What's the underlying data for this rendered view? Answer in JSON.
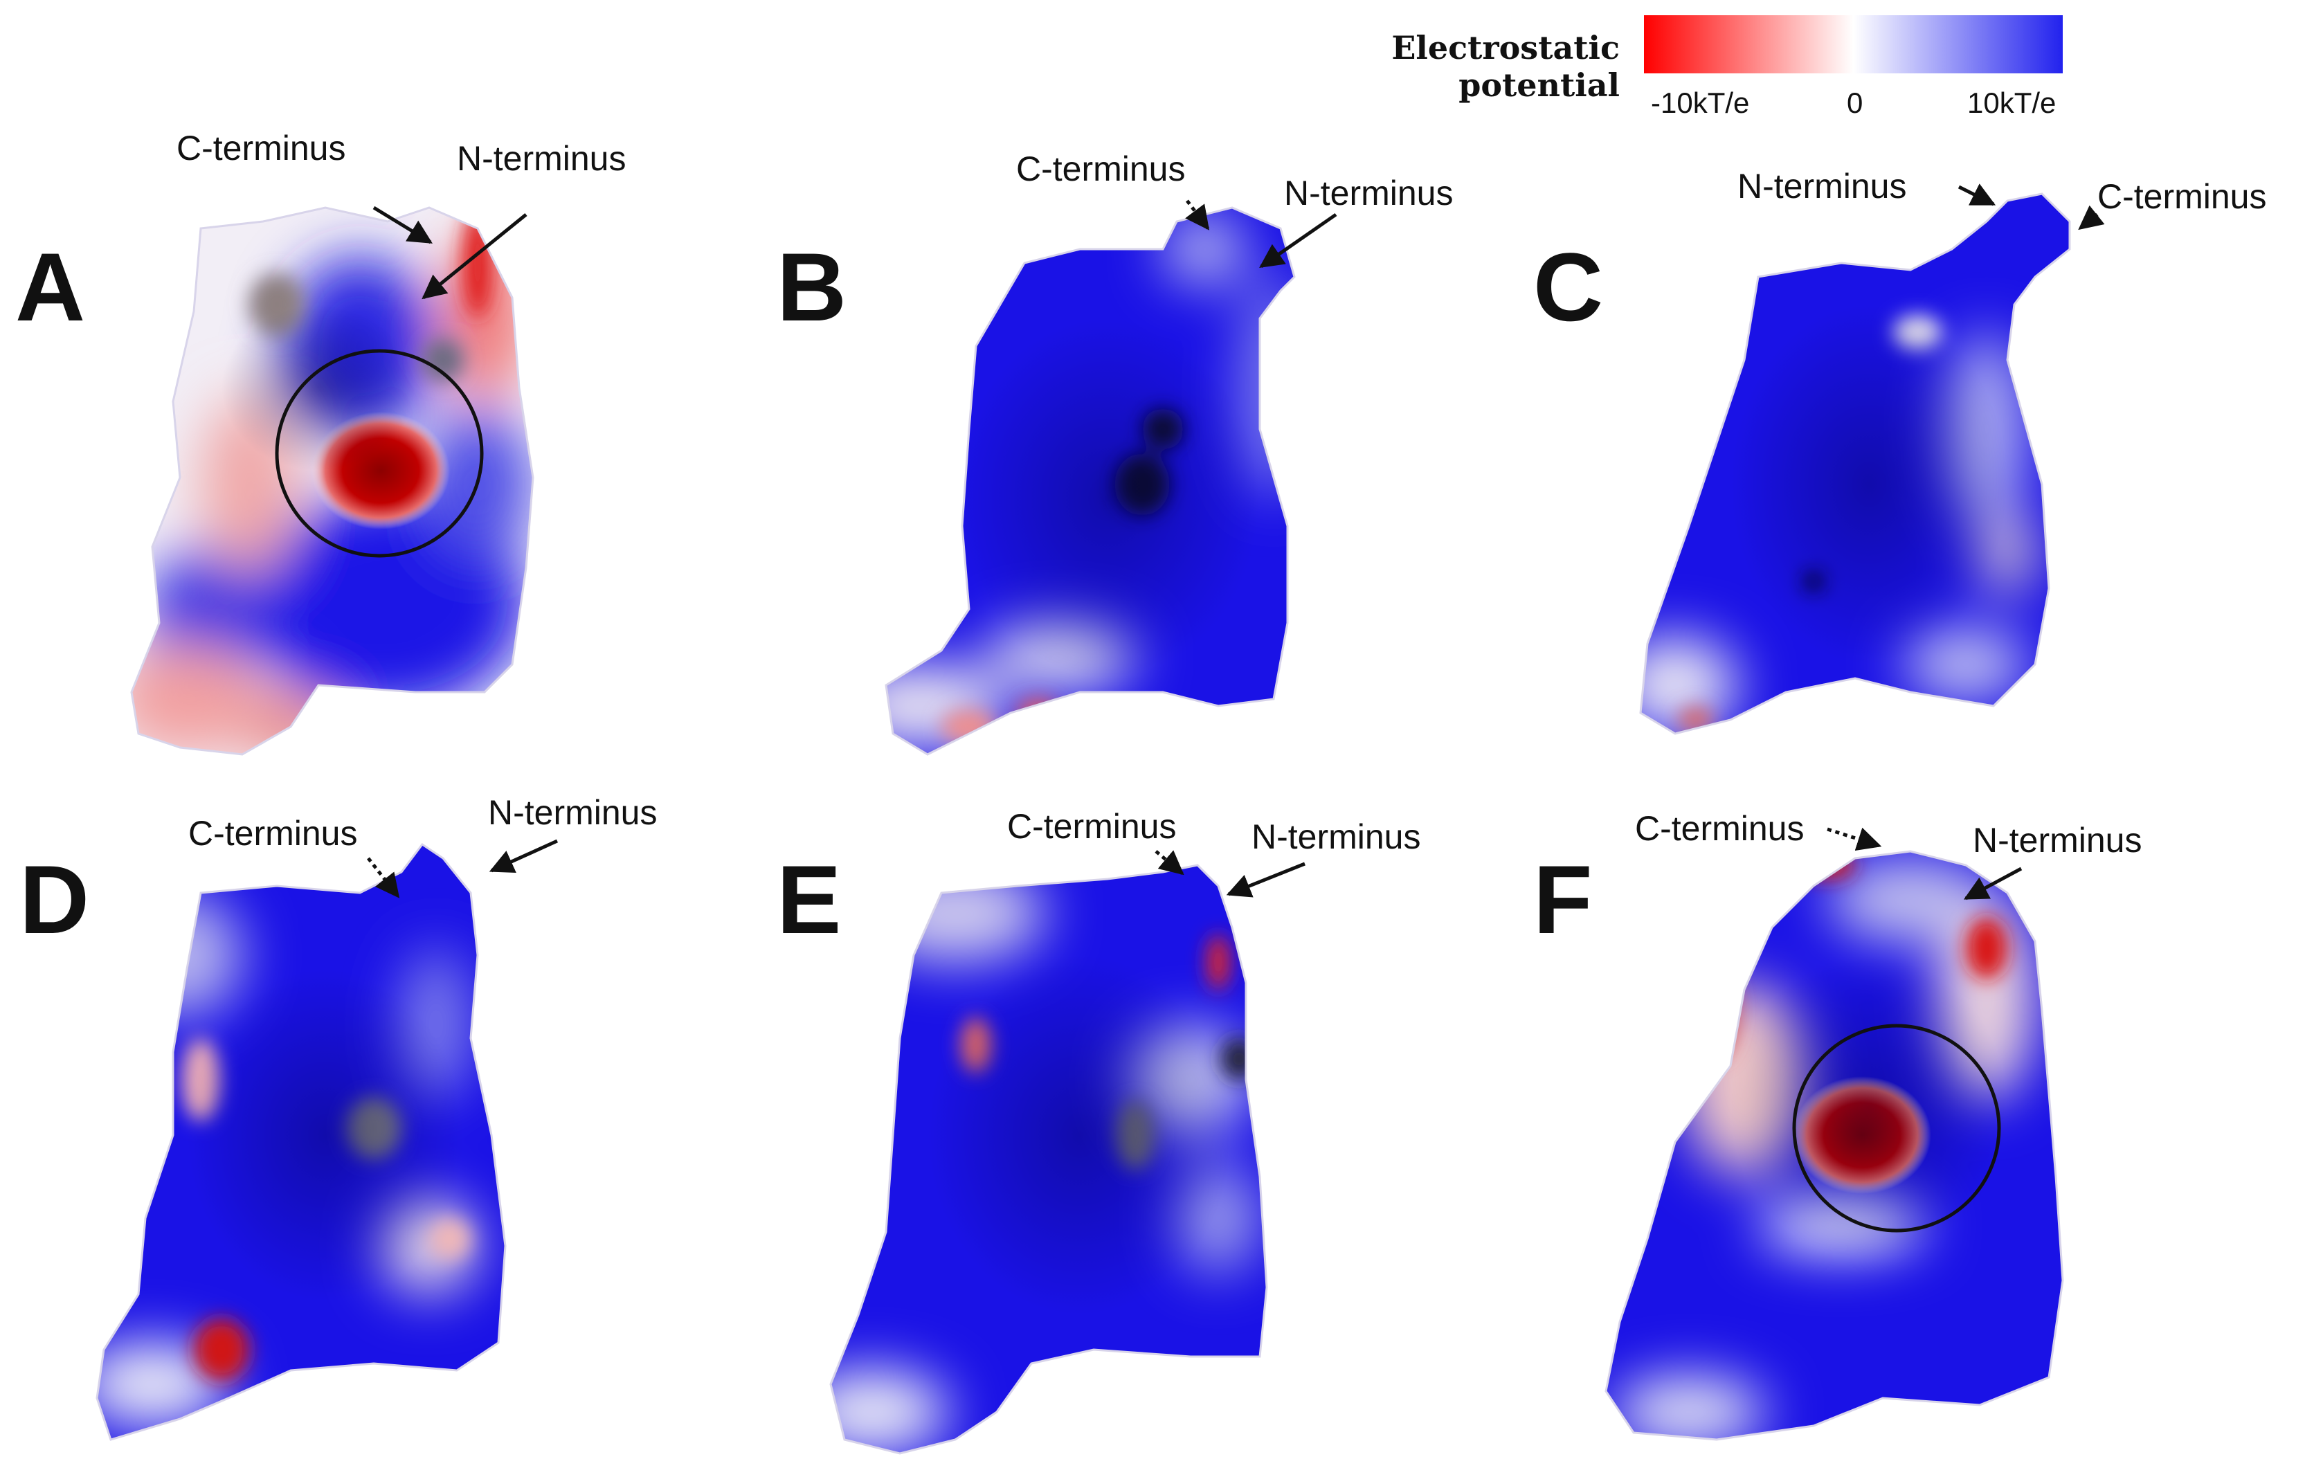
{
  "legend": {
    "title": "Electrostatic potential",
    "ticks": [
      "-10kT/e",
      "0",
      "10kT/e"
    ],
    "colors": {
      "negative": "#ff0000",
      "neutral": "#ffffff",
      "positive": "#2222ee"
    }
  },
  "panels": [
    {
      "letter": "A",
      "c_terminus": "C-terminus",
      "n_terminus": "N-terminus",
      "pocket_circled": true
    },
    {
      "letter": "B",
      "c_terminus": "C-terminus",
      "n_terminus": "N-terminus",
      "pocket_circled": false
    },
    {
      "letter": "C",
      "c_terminus": "C-terminus",
      "n_terminus": "N-terminus",
      "pocket_circled": false
    },
    {
      "letter": "D",
      "c_terminus": "C-terminus",
      "n_terminus": "N-terminus",
      "pocket_circled": false
    },
    {
      "letter": "E",
      "c_terminus": "C-terminus",
      "n_terminus": "N-terminus",
      "pocket_circled": false
    },
    {
      "letter": "F",
      "c_terminus": "C-terminus",
      "n_terminus": "N-terminus",
      "pocket_circled": true
    }
  ],
  "surface_colors": {
    "blue": "#1a12e6",
    "deep_blue": "#0d0aa8",
    "pale_blue": "#b9b9f0",
    "white": "#f4f4fb",
    "pink": "#f0a0a0",
    "red": "#e01818",
    "dark_red": "#9a0000",
    "grey": "#8e8e9a"
  }
}
